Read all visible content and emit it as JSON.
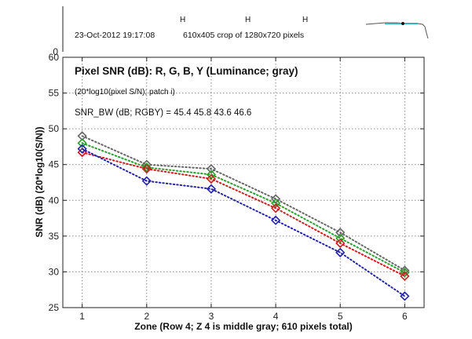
{
  "header": {
    "timestamp": "23-Oct-2012 19:17:08",
    "crop_info": "610x405 crop of 1280x720 pixels",
    "marker_glyph": "H"
  },
  "colors": {
    "R": "#cc1f1f",
    "G": "#2aa02a",
    "B": "#2424a8",
    "Y": "#666666",
    "grid": "#8a8a8a",
    "thumb_line": "#555555",
    "thumb_accent": "#2cb8b8"
  },
  "chart_data": {
    "type": "line",
    "title": "Pixel SNR (dB): R, G, B, Y (Luminance; gray)",
    "annotations": [
      "(20*log10(pixel S/N); patch i)",
      "SNR_BW (dB; RGBY) = 45.4 45.8 43.6 46.6"
    ],
    "xlabel": "Zone  (Row 4;  Z 4 is middle gray;  610 pixels total)",
    "ylabel": "SNR (dB) (20*log10(S/N))",
    "x": [
      1,
      2,
      3,
      4,
      5,
      6
    ],
    "xlim": [
      0.7,
      6.3
    ],
    "ylim": [
      25,
      60
    ],
    "xticks": [
      1,
      2,
      3,
      4,
      5,
      6
    ],
    "yticks": [
      25,
      30,
      35,
      40,
      45,
      50,
      55,
      60
    ],
    "extra_ytick_above": 0,
    "grid": true,
    "marker": "diamond",
    "line_style": "dotted",
    "series": [
      {
        "key": "Y",
        "values": [
          49.0,
          45.0,
          44.4,
          40.2,
          35.5,
          30.2
        ]
      },
      {
        "key": "G",
        "values": [
          48.0,
          44.6,
          43.6,
          39.6,
          34.7,
          29.9
        ]
      },
      {
        "key": "R",
        "values": [
          46.7,
          44.4,
          43.0,
          38.9,
          34.0,
          29.4
        ]
      },
      {
        "key": "B",
        "values": [
          47.2,
          42.7,
          41.6,
          37.2,
          32.7,
          26.6
        ]
      }
    ]
  }
}
